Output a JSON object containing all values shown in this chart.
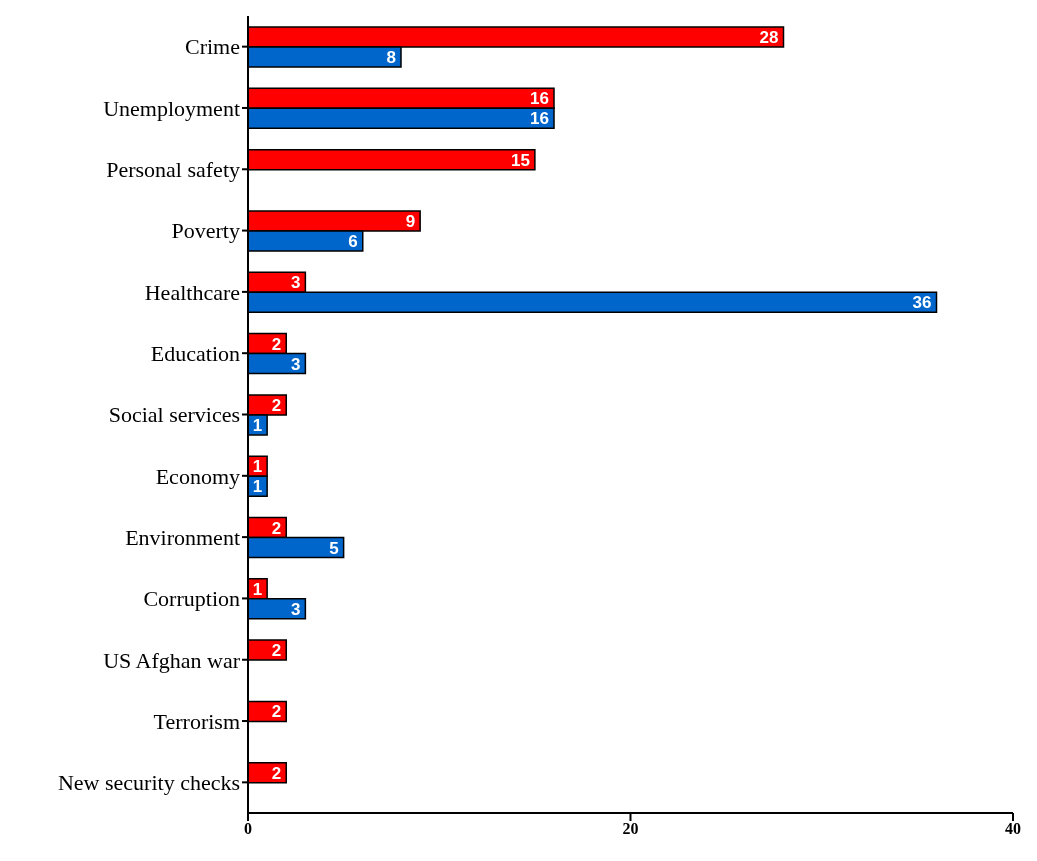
{
  "chart_data": {
    "type": "bar",
    "orientation": "horizontal",
    "categories": [
      "Crime",
      "Unemployment",
      "Personal safety",
      "Poverty",
      "Healthcare",
      "Education",
      "Social services",
      "Economy",
      "Environment",
      "Corruption",
      "US Afghan war",
      "Terrorism",
      "New security checks"
    ],
    "series": [
      {
        "color": "#ff0000",
        "values": [
          28,
          16,
          15,
          9,
          3,
          2,
          2,
          1,
          2,
          1,
          2,
          2,
          2
        ]
      },
      {
        "color": "#0066cc",
        "values": [
          8,
          16,
          null,
          6,
          36,
          3,
          1,
          1,
          5,
          3,
          null,
          null,
          null
        ]
      }
    ],
    "xlim": [
      0,
      40
    ],
    "xticks": [
      0,
      20,
      40
    ],
    "data_labels": true
  }
}
